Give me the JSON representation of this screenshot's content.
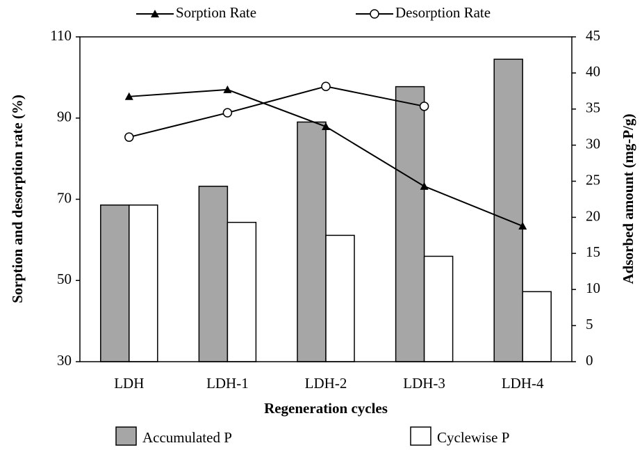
{
  "chart_data": {
    "type": "combo",
    "x_label": "Regeneration cycles",
    "y_label": "Sorption and desorption rate (%)",
    "y2_label": "Adsorbed amount (mg-P/g)",
    "categories": [
      "LDH",
      "LDH-1",
      "LDH-2",
      "LDH-3",
      "LDH-4"
    ],
    "series": [
      {
        "name": "Sorption Rate",
        "type": "line",
        "marker": "triangle",
        "color": "#000000",
        "axis": "y",
        "values": [
          95.3,
          97.0,
          87.9,
          73.2,
          63.4
        ]
      },
      {
        "name": "Desorption Rate",
        "type": "line",
        "marker": "circle",
        "color": "#000000",
        "axis": "y",
        "values": [
          85.3,
          91.3,
          97.8,
          92.9,
          null
        ]
      },
      {
        "name": "Accumulated P",
        "type": "bar",
        "color": "#a6a6a6",
        "axis": "y2",
        "values": [
          21.7,
          24.3,
          33.2,
          38.1,
          41.9
        ]
      },
      {
        "name": "Cyclewise P",
        "type": "bar",
        "color": "#ffffff",
        "axis": "y2",
        "values": [
          21.7,
          19.3,
          17.5,
          14.6,
          9.7
        ]
      }
    ],
    "ylim": [
      30,
      110
    ],
    "yticks": [
      30,
      50,
      70,
      90,
      110
    ],
    "y2lim": [
      0,
      45
    ],
    "y2ticks": [
      0,
      5,
      10,
      15,
      20,
      25,
      30,
      35,
      40,
      45
    ],
    "grid": false
  }
}
